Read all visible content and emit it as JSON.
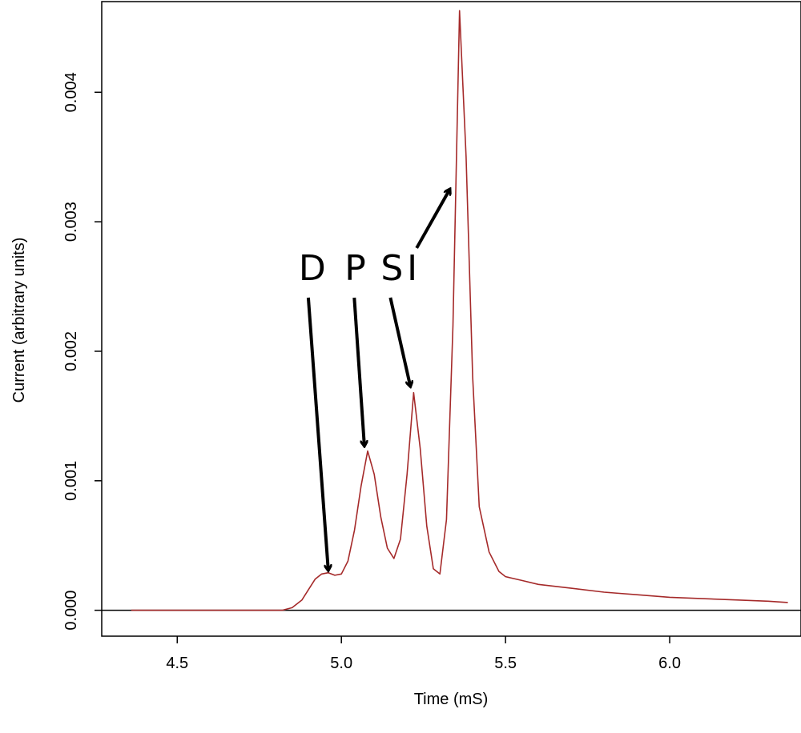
{
  "chart_data": {
    "type": "line",
    "xlabel": "Time (mS)",
    "ylabel": "Current (arbitrary units)",
    "xlim": [
      4.27,
      6.4
    ],
    "ylim": [
      -0.0002,
      0.0047
    ],
    "x_ticks": [
      4.5,
      5.0,
      5.5,
      6.0
    ],
    "x_tick_labels": [
      "4.5",
      "5.0",
      "5.5",
      "6.0"
    ],
    "y_ticks": [
      0.0,
      0.001,
      0.002,
      0.003,
      0.004
    ],
    "y_tick_labels": [
      "0.000",
      "0.001",
      "0.002",
      "0.003",
      "0.004"
    ],
    "reference_line_y": 0.0,
    "grid": false,
    "series": [
      {
        "color": "#a52a2a",
        "x": [
          4.36,
          4.45,
          4.55,
          4.65,
          4.75,
          4.82,
          4.85,
          4.88,
          4.9,
          4.92,
          4.94,
          4.96,
          4.98,
          5.0,
          5.02,
          5.04,
          5.06,
          5.08,
          5.1,
          5.12,
          5.14,
          5.16,
          5.18,
          5.2,
          5.22,
          5.24,
          5.26,
          5.28,
          5.3,
          5.32,
          5.34,
          5.36,
          5.38,
          5.4,
          5.42,
          5.45,
          5.48,
          5.5,
          5.55,
          5.6,
          5.7,
          5.8,
          5.9,
          6.0,
          6.1,
          6.2,
          6.3,
          6.36
        ],
        "y": [
          0.0,
          0.0,
          0.0,
          0.0,
          0.0,
          0.0,
          2e-05,
          8e-05,
          0.00016,
          0.00024,
          0.00028,
          0.00029,
          0.00027,
          0.00028,
          0.00038,
          0.00062,
          0.00096,
          0.00123,
          0.00105,
          0.00072,
          0.00048,
          0.0004,
          0.00055,
          0.00105,
          0.00168,
          0.00125,
          0.00065,
          0.00032,
          0.00028,
          0.0007,
          0.0022,
          0.00463,
          0.0035,
          0.0018,
          0.0008,
          0.00045,
          0.0003,
          0.00026,
          0.00023,
          0.0002,
          0.00017,
          0.00014,
          0.00012,
          0.0001,
          9e-05,
          8e-05,
          7e-05,
          6e-05
        ]
      }
    ],
    "annotations": [
      {
        "text": "D",
        "x": 4.87,
        "y": 0.00255,
        "arrow_to": [
          4.96,
          0.00031
        ]
      },
      {
        "text": "P",
        "x": 5.01,
        "y": 0.00255,
        "arrow_to": [
          5.07,
          0.00127
        ]
      },
      {
        "text": "S",
        "x": 5.12,
        "y": 0.00255,
        "arrow_to": [
          5.21,
          0.00173
        ]
      },
      {
        "text": "I",
        "x": 5.2,
        "y": 0.00255,
        "arrow_to": [
          5.33,
          0.00325
        ]
      }
    ]
  }
}
